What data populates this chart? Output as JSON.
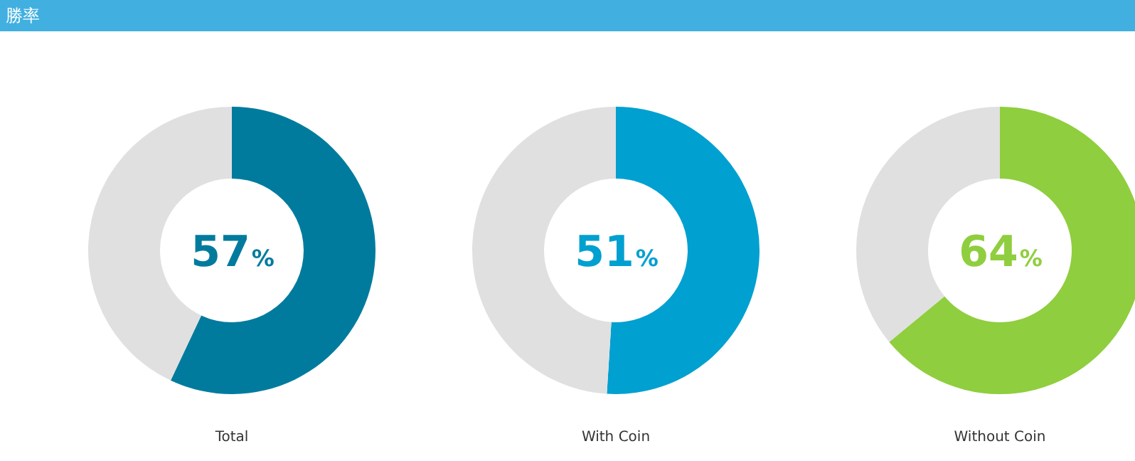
{
  "chart_data": [
    {
      "type": "other",
      "title": "勝率"
    },
    {
      "type": "donut",
      "categories": [
        null,
        null
      ],
      "values": [
        57,
        43
      ],
      "colors": [
        "#007b9e",
        "#e0e0e0"
      ],
      "value_labels": [
        "57%",
        null
      ],
      "xlabel": "Total",
      "legend": false
    },
    {
      "type": "donut",
      "categories": [
        null,
        null
      ],
      "values": [
        51,
        49
      ],
      "colors": [
        "#00a0d0",
        "#e0e0e0"
      ],
      "value_labels": [
        "51%",
        null
      ],
      "xlabel": "With Coin",
      "legend": false
    },
    {
      "type": "donut",
      "categories": [
        null,
        null
      ],
      "values": [
        64,
        36
      ],
      "colors": [
        "#8fce3e",
        "#e0e0e0"
      ],
      "value_labels": [
        "64%",
        null
      ],
      "xlabel": "Without Coin",
      "legend": false
    }
  ]
}
